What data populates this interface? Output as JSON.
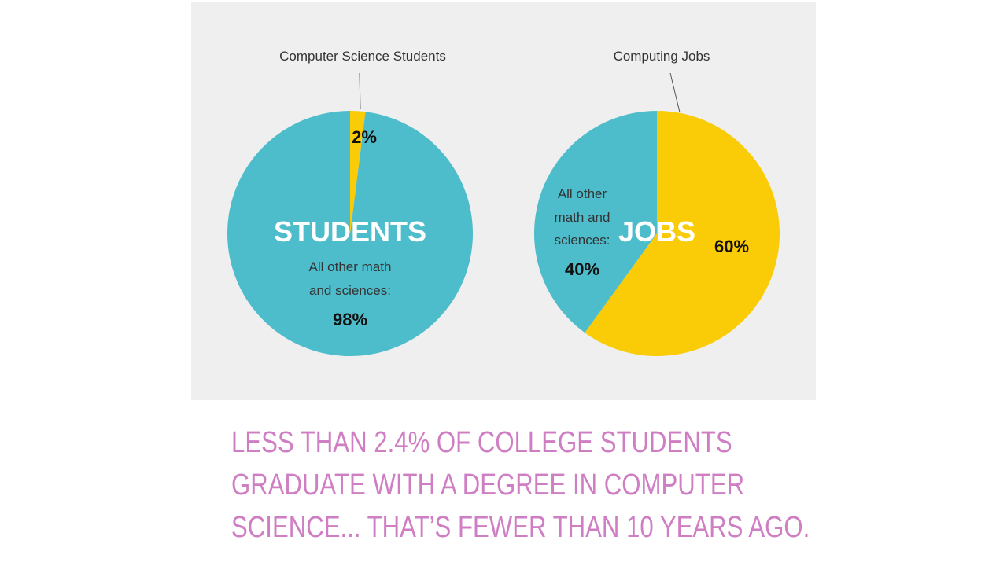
{
  "chart_data": [
    {
      "type": "pie",
      "title": "STUDENTS",
      "slices": [
        {
          "label": "Computer Science Students",
          "value": 2,
          "value_label": "2%",
          "color": "#f9cc07"
        },
        {
          "label": "All other math and sciences:",
          "value": 98,
          "value_label": "98%",
          "color": "#4ebdcb"
        }
      ]
    },
    {
      "type": "pie",
      "title": "JOBS",
      "slices": [
        {
          "label": "Computing Jobs",
          "value": 60,
          "value_label": "60%",
          "color": "#f9cc07"
        },
        {
          "label": "All other math and sciences:",
          "value": 40,
          "value_label": "40%",
          "color": "#4ebdcb"
        }
      ]
    }
  ],
  "caption": {
    "line1": "Less than 2.4% of college students",
    "line2": "graduate with a degree in computer",
    "line3": "science... that’s fewer than 10 years ago."
  }
}
